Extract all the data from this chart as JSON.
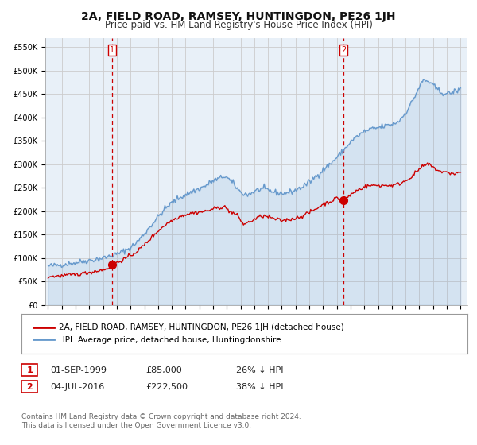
{
  "title": "2A, FIELD ROAD, RAMSEY, HUNTINGDON, PE26 1JH",
  "subtitle": "Price paid vs. HM Land Registry's House Price Index (HPI)",
  "title_fontsize": 10,
  "subtitle_fontsize": 8.5,
  "ylabel_ticks": [
    "£0",
    "£50K",
    "£100K",
    "£150K",
    "£200K",
    "£250K",
    "£300K",
    "£350K",
    "£400K",
    "£450K",
    "£500K",
    "£550K"
  ],
  "ytick_values": [
    0,
    50000,
    100000,
    150000,
    200000,
    250000,
    300000,
    350000,
    400000,
    450000,
    500000,
    550000
  ],
  "ylim": [
    0,
    570000
  ],
  "xlim_start": 1994.8,
  "xlim_end": 2025.5,
  "sale1_date": 1999.667,
  "sale1_price": 85000,
  "sale1_label": "1",
  "sale2_date": 2016.5,
  "sale2_price": 222500,
  "sale2_label": "2",
  "hpi_color": "#6699cc",
  "hpi_fill_color": "#ddeeff",
  "price_color": "#cc0000",
  "vline_color": "#cc0000",
  "grid_color": "#cccccc",
  "bg_color": "#ffffff",
  "chart_bg_color": "#e8f0f8",
  "legend_entry1": "2A, FIELD ROAD, RAMSEY, HUNTINGDON, PE26 1JH (detached house)",
  "legend_entry2": "HPI: Average price, detached house, Huntingdonshire",
  "annotation1_date": "01-SEP-1999",
  "annotation1_price": "£85,000",
  "annotation1_hpi": "26% ↓ HPI",
  "annotation2_date": "04-JUL-2016",
  "annotation2_price": "£222,500",
  "annotation2_hpi": "38% ↓ HPI",
  "footer": "Contains HM Land Registry data © Crown copyright and database right 2024.\nThis data is licensed under the Open Government Licence v3.0.",
  "hpi_anchors": [
    [
      1995.0,
      83000
    ],
    [
      1995.5,
      84000
    ],
    [
      1996.0,
      86000
    ],
    [
      1996.5,
      88000
    ],
    [
      1997.0,
      90000
    ],
    [
      1997.5,
      93000
    ],
    [
      1998.0,
      95000
    ],
    [
      1998.5,
      97000
    ],
    [
      1999.0,
      100000
    ],
    [
      1999.5,
      104000
    ],
    [
      2000.0,
      108000
    ],
    [
      2000.5,
      115000
    ],
    [
      2001.0,
      122000
    ],
    [
      2001.5,
      135000
    ],
    [
      2002.0,
      152000
    ],
    [
      2002.5,
      170000
    ],
    [
      2003.0,
      188000
    ],
    [
      2003.5,
      205000
    ],
    [
      2004.0,
      218000
    ],
    [
      2004.5,
      228000
    ],
    [
      2005.0,
      235000
    ],
    [
      2005.5,
      242000
    ],
    [
      2006.0,
      248000
    ],
    [
      2006.5,
      255000
    ],
    [
      2007.0,
      265000
    ],
    [
      2007.5,
      270000
    ],
    [
      2007.8,
      275000
    ],
    [
      2008.0,
      272000
    ],
    [
      2008.5,
      258000
    ],
    [
      2009.0,
      240000
    ],
    [
      2009.5,
      235000
    ],
    [
      2010.0,
      242000
    ],
    [
      2010.5,
      248000
    ],
    [
      2011.0,
      245000
    ],
    [
      2011.5,
      240000
    ],
    [
      2012.0,
      238000
    ],
    [
      2012.5,
      240000
    ],
    [
      2013.0,
      245000
    ],
    [
      2013.5,
      252000
    ],
    [
      2014.0,
      262000
    ],
    [
      2014.5,
      275000
    ],
    [
      2015.0,
      288000
    ],
    [
      2015.5,
      300000
    ],
    [
      2016.0,
      315000
    ],
    [
      2016.5,
      330000
    ],
    [
      2017.0,
      348000
    ],
    [
      2017.5,
      360000
    ],
    [
      2018.0,
      370000
    ],
    [
      2018.5,
      375000
    ],
    [
      2019.0,
      378000
    ],
    [
      2019.5,
      382000
    ],
    [
      2020.0,
      385000
    ],
    [
      2020.5,
      392000
    ],
    [
      2021.0,
      410000
    ],
    [
      2021.5,
      435000
    ],
    [
      2022.0,
      465000
    ],
    [
      2022.3,
      480000
    ],
    [
      2022.5,
      478000
    ],
    [
      2022.8,
      475000
    ],
    [
      2023.0,
      468000
    ],
    [
      2023.5,
      455000
    ],
    [
      2024.0,
      450000
    ],
    [
      2024.5,
      455000
    ],
    [
      2025.0,
      460000
    ]
  ],
  "price_anchors": [
    [
      1995.0,
      60000
    ],
    [
      1995.5,
      61000
    ],
    [
      1996.0,
      62000
    ],
    [
      1996.5,
      63500
    ],
    [
      1997.0,
      65000
    ],
    [
      1997.5,
      67000
    ],
    [
      1998.0,
      69000
    ],
    [
      1998.5,
      72000
    ],
    [
      1999.0,
      75000
    ],
    [
      1999.5,
      80000
    ],
    [
      1999.667,
      85000
    ],
    [
      2000.0,
      90000
    ],
    [
      2000.5,
      97000
    ],
    [
      2001.0,
      105000
    ],
    [
      2001.5,
      115000
    ],
    [
      2002.0,
      128000
    ],
    [
      2002.5,
      143000
    ],
    [
      2003.0,
      158000
    ],
    [
      2003.5,
      170000
    ],
    [
      2004.0,
      180000
    ],
    [
      2004.5,
      188000
    ],
    [
      2005.0,
      193000
    ],
    [
      2005.5,
      196000
    ],
    [
      2006.0,
      198000
    ],
    [
      2006.5,
      200000
    ],
    [
      2007.0,
      205000
    ],
    [
      2007.5,
      208000
    ],
    [
      2007.8,
      210000
    ],
    [
      2008.2,
      200000
    ],
    [
      2008.8,
      190000
    ],
    [
      2009.2,
      172000
    ],
    [
      2009.5,
      175000
    ],
    [
      2010.0,
      182000
    ],
    [
      2010.5,
      190000
    ],
    [
      2011.0,
      188000
    ],
    [
      2011.5,
      183000
    ],
    [
      2012.0,
      180000
    ],
    [
      2012.5,
      182000
    ],
    [
      2013.0,
      185000
    ],
    [
      2013.5,
      190000
    ],
    [
      2014.0,
      197000
    ],
    [
      2014.5,
      205000
    ],
    [
      2015.0,
      215000
    ],
    [
      2015.5,
      220000
    ],
    [
      2016.0,
      228000
    ],
    [
      2016.5,
      222500
    ],
    [
      2017.0,
      235000
    ],
    [
      2017.5,
      245000
    ],
    [
      2018.0,
      252000
    ],
    [
      2018.5,
      255000
    ],
    [
      2019.0,
      255000
    ],
    [
      2019.5,
      255000
    ],
    [
      2020.0,
      255000
    ],
    [
      2020.5,
      258000
    ],
    [
      2021.0,
      265000
    ],
    [
      2021.5,
      275000
    ],
    [
      2022.0,
      290000
    ],
    [
      2022.5,
      300000
    ],
    [
      2022.8,
      298000
    ],
    [
      2023.0,
      293000
    ],
    [
      2023.5,
      285000
    ],
    [
      2024.0,
      282000
    ],
    [
      2024.5,
      280000
    ],
    [
      2025.0,
      283000
    ]
  ]
}
